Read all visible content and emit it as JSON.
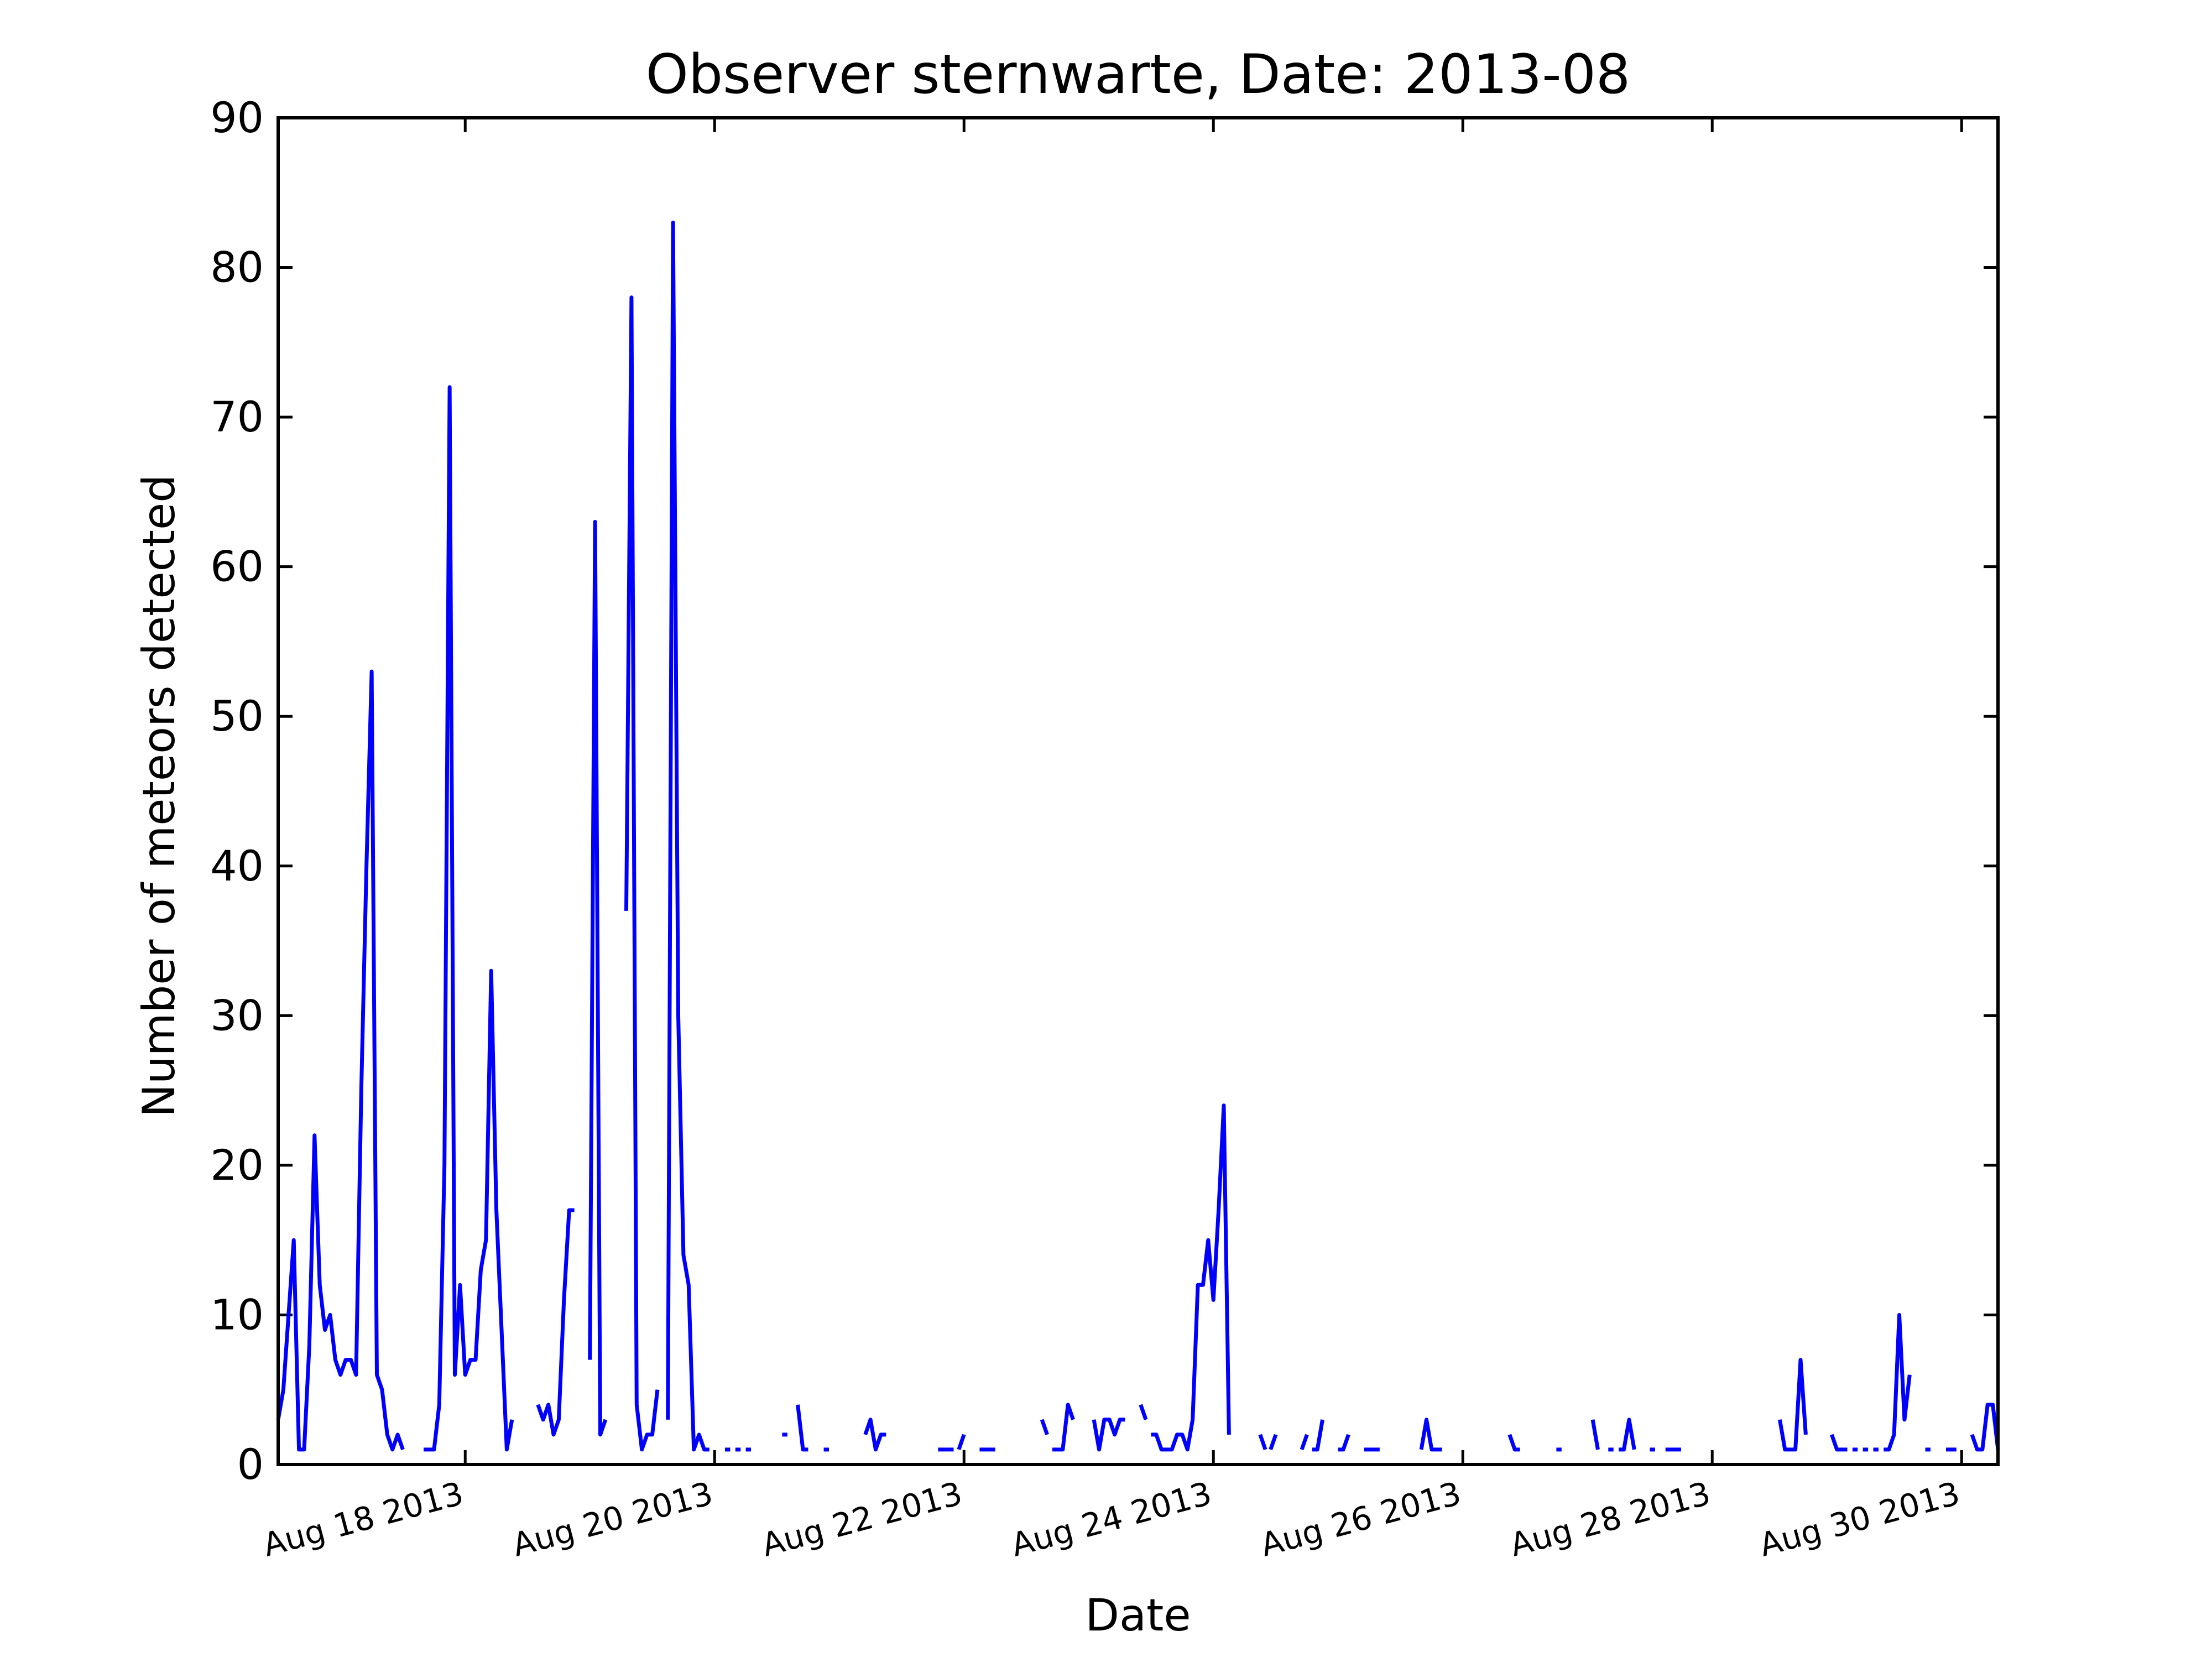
{
  "chart_data": {
    "type": "line",
    "title": "Observer sternwarte, Date: 2013-08",
    "xlabel": "Date",
    "ylabel": "Number of meteors detected",
    "ylim": [
      0,
      90
    ],
    "xlim": [
      "2013-08-17 00:00",
      "2013-08-30 19:00"
    ],
    "y_ticks": [
      0,
      10,
      20,
      30,
      40,
      50,
      60,
      70,
      80,
      90
    ],
    "x_ticks": [
      {
        "date": "2013-08-18 12:00",
        "label": "Aug 18 2013"
      },
      {
        "date": "2013-08-20 12:00",
        "label": "Aug 20 2013"
      },
      {
        "date": "2013-08-22 12:00",
        "label": "Aug 22 2013"
      },
      {
        "date": "2013-08-24 12:00",
        "label": "Aug 24 2013"
      },
      {
        "date": "2013-08-26 12:00",
        "label": "Aug 26 2013"
      },
      {
        "date": "2013-08-28 12:00",
        "label": "Aug 28 2013"
      },
      {
        "date": "2013-08-30 12:00",
        "label": "Aug 30 2013"
      }
    ],
    "grid": false,
    "legend": "none",
    "line_color": "#0000ff",
    "series": [
      {
        "segments": [
          [
            [
              "2013-08-17 00:00",
              3
            ],
            [
              "2013-08-17 01:00",
              5
            ],
            [
              "2013-08-17 02:00",
              10
            ],
            [
              "2013-08-17 03:00",
              15
            ],
            [
              "2013-08-17 04:00",
              1
            ],
            [
              "2013-08-17 05:00",
              1
            ],
            [
              "2013-08-17 06:00",
              8
            ],
            [
              "2013-08-17 07:00",
              22
            ],
            [
              "2013-08-17 08:00",
              12
            ],
            [
              "2013-08-17 09:00",
              9
            ],
            [
              "2013-08-17 10:00",
              10
            ],
            [
              "2013-08-17 11:00",
              7
            ],
            [
              "2013-08-17 12:00",
              6
            ],
            [
              "2013-08-17 13:00",
              7
            ],
            [
              "2013-08-17 14:00",
              7
            ],
            [
              "2013-08-17 15:00",
              6
            ],
            [
              "2013-08-17 16:00",
              25
            ],
            [
              "2013-08-17 17:00",
              40
            ],
            [
              "2013-08-17 18:00",
              53
            ],
            [
              "2013-08-17 19:00",
              6
            ],
            [
              "2013-08-17 20:00",
              5
            ],
            [
              "2013-08-17 21:00",
              2
            ],
            [
              "2013-08-17 22:00",
              1
            ],
            [
              "2013-08-17 23:00",
              2
            ],
            [
              "2013-08-18 00:00",
              1
            ]
          ],
          [
            [
              "2013-08-18 04:00",
              1
            ],
            [
              "2013-08-18 05:00",
              1
            ],
            [
              "2013-08-18 06:00",
              1
            ],
            [
              "2013-08-18 07:00",
              4
            ],
            [
              "2013-08-18 08:00",
              20
            ],
            [
              "2013-08-18 09:00",
              72
            ],
            [
              "2013-08-18 10:00",
              6
            ],
            [
              "2013-08-18 11:00",
              12
            ],
            [
              "2013-08-18 12:00",
              6
            ],
            [
              "2013-08-18 13:00",
              7
            ],
            [
              "2013-08-18 14:00",
              7
            ],
            [
              "2013-08-18 15:00",
              13
            ],
            [
              "2013-08-18 16:00",
              15
            ],
            [
              "2013-08-18 17:00",
              33
            ],
            [
              "2013-08-18 18:00",
              17
            ],
            [
              "2013-08-18 19:00",
              9
            ],
            [
              "2013-08-18 20:00",
              1
            ],
            [
              "2013-08-18 21:00",
              3
            ]
          ],
          [
            [
              "2013-08-19 02:00",
              4
            ],
            [
              "2013-08-19 03:00",
              3
            ],
            [
              "2013-08-19 04:00",
              4
            ],
            [
              "2013-08-19 05:00",
              2
            ],
            [
              "2013-08-19 06:00",
              3
            ],
            [
              "2013-08-19 07:00",
              11
            ],
            [
              "2013-08-19 08:00",
              17
            ],
            [
              "2013-08-19 09:00",
              17
            ]
          ],
          [
            [
              "2013-08-19 12:00",
              7
            ],
            [
              "2013-08-19 13:00",
              63
            ],
            [
              "2013-08-19 14:00",
              2
            ],
            [
              "2013-08-19 15:00",
              3
            ]
          ],
          [
            [
              "2013-08-19 19:00",
              37
            ],
            [
              "2013-08-19 20:00",
              78
            ],
            [
              "2013-08-19 21:00",
              4
            ],
            [
              "2013-08-19 22:00",
              1
            ],
            [
              "2013-08-19 23:00",
              2
            ],
            [
              "2013-08-20 00:00",
              2
            ],
            [
              "2013-08-20 01:00",
              5
            ]
          ],
          [
            [
              "2013-08-20 03:00",
              3
            ],
            [
              "2013-08-20 04:00",
              83
            ],
            [
              "2013-08-20 05:00",
              30
            ],
            [
              "2013-08-20 06:00",
              14
            ],
            [
              "2013-08-20 07:00",
              12
            ],
            [
              "2013-08-20 08:00",
              1
            ],
            [
              "2013-08-20 09:00",
              2
            ],
            [
              "2013-08-20 10:00",
              1
            ],
            [
              "2013-08-20 11:00",
              1
            ]
          ],
          [
            [
              "2013-08-20 14:00",
              1
            ],
            [
              "2013-08-20 15:00",
              1
            ]
          ],
          [
            [
              "2013-08-20 16:00",
              1
            ],
            [
              "2013-08-20 17:00",
              1
            ]
          ],
          [
            [
              "2013-08-20 18:00",
              1
            ],
            [
              "2013-08-20 19:00",
              1
            ]
          ],
          [
            [
              "2013-08-21 01:00",
              2
            ],
            [
              "2013-08-21 02:00",
              2
            ]
          ],
          [
            [
              "2013-08-21 04:00",
              4
            ],
            [
              "2013-08-21 05:00",
              1
            ],
            [
              "2013-08-21 06:00",
              1
            ]
          ],
          [
            [
              "2013-08-21 09:00",
              1
            ],
            [
              "2013-08-21 10:00",
              1
            ]
          ],
          [
            [
              "2013-08-21 17:00",
              2
            ],
            [
              "2013-08-21 18:00",
              3
            ],
            [
              "2013-08-21 19:00",
              1
            ],
            [
              "2013-08-21 20:00",
              2
            ],
            [
              "2013-08-21 21:00",
              2
            ]
          ],
          [
            [
              "2013-08-22 07:00",
              1
            ],
            [
              "2013-08-22 08:00",
              1
            ],
            [
              "2013-08-22 09:00",
              1
            ],
            [
              "2013-08-22 10:00",
              1
            ]
          ],
          [
            [
              "2013-08-22 11:00",
              1
            ],
            [
              "2013-08-22 12:00",
              2
            ]
          ],
          [
            [
              "2013-08-22 15:00",
              1
            ],
            [
              "2013-08-22 16:00",
              1
            ],
            [
              "2013-08-22 17:00",
              1
            ],
            [
              "2013-08-22 18:00",
              1
            ]
          ],
          [
            [
              "2013-08-23 03:00",
              3
            ],
            [
              "2013-08-23 04:00",
              2
            ]
          ],
          [
            [
              "2013-08-23 05:00",
              1
            ],
            [
              "2013-08-23 06:00",
              1
            ],
            [
              "2013-08-23 07:00",
              1
            ],
            [
              "2013-08-23 08:00",
              4
            ],
            [
              "2013-08-23 09:00",
              3
            ]
          ],
          [
            [
              "2013-08-23 13:00",
              3
            ],
            [
              "2013-08-23 14:00",
              1
            ],
            [
              "2013-08-23 15:00",
              3
            ],
            [
              "2013-08-23 16:00",
              3
            ],
            [
              "2013-08-23 17:00",
              2
            ],
            [
              "2013-08-23 18:00",
              3
            ],
            [
              "2013-08-23 19:00",
              3
            ]
          ],
          [
            [
              "2013-08-23 22:00",
              4
            ],
            [
              "2013-08-23 23:00",
              3
            ]
          ],
          [
            [
              "2013-08-24 00:00",
              2
            ],
            [
              "2013-08-24 01:00",
              2
            ],
            [
              "2013-08-24 02:00",
              1
            ],
            [
              "2013-08-24 03:00",
              1
            ],
            [
              "2013-08-24 04:00",
              1
            ],
            [
              "2013-08-24 05:00",
              2
            ],
            [
              "2013-08-24 06:00",
              2
            ],
            [
              "2013-08-24 07:00",
              1
            ],
            [
              "2013-08-24 08:00",
              3
            ],
            [
              "2013-08-24 09:00",
              12
            ],
            [
              "2013-08-24 10:00",
              12
            ],
            [
              "2013-08-24 11:00",
              15
            ],
            [
              "2013-08-24 12:00",
              11
            ],
            [
              "2013-08-24 13:00",
              17
            ],
            [
              "2013-08-24 14:00",
              24
            ],
            [
              "2013-08-24 15:00",
              2
            ]
          ],
          [
            [
              "2013-08-24 21:00",
              2
            ],
            [
              "2013-08-24 22:00",
              1
            ]
          ],
          [
            [
              "2013-08-24 23:00",
              1
            ],
            [
              "2013-08-25 00:00",
              2
            ]
          ],
          [
            [
              "2013-08-25 05:00",
              1
            ],
            [
              "2013-08-25 06:00",
              2
            ]
          ],
          [
            [
              "2013-08-25 07:00",
              1
            ],
            [
              "2013-08-25 08:00",
              1
            ],
            [
              "2013-08-25 09:00",
              3
            ]
          ],
          [
            [
              "2013-08-25 12:00",
              1
            ],
            [
              "2013-08-25 13:00",
              1
            ],
            [
              "2013-08-25 14:00",
              2
            ]
          ],
          [
            [
              "2013-08-25 17:00",
              1
            ],
            [
              "2013-08-25 18:00",
              1
            ],
            [
              "2013-08-25 19:00",
              1
            ],
            [
              "2013-08-25 20:00",
              1
            ]
          ],
          [
            [
              "2013-08-26 04:00",
              1
            ],
            [
              "2013-08-26 05:00",
              3
            ],
            [
              "2013-08-26 06:00",
              1
            ],
            [
              "2013-08-26 07:00",
              1
            ],
            [
              "2013-08-26 08:00",
              1
            ]
          ],
          [
            [
              "2013-08-26 21:00",
              2
            ],
            [
              "2013-08-26 22:00",
              1
            ],
            [
              "2013-08-26 23:00",
              1
            ]
          ],
          [
            [
              "2013-08-27 06:00",
              1
            ],
            [
              "2013-08-27 07:00",
              1
            ]
          ],
          [
            [
              "2013-08-27 13:00",
              3
            ],
            [
              "2013-08-27 14:00",
              1
            ]
          ],
          [
            [
              "2013-08-27 16:00",
              1
            ],
            [
              "2013-08-27 17:00",
              1
            ]
          ],
          [
            [
              "2013-08-27 18:00",
              1
            ],
            [
              "2013-08-27 19:00",
              1
            ],
            [
              "2013-08-27 20:00",
              3
            ],
            [
              "2013-08-27 21:00",
              1
            ]
          ],
          [
            [
              "2013-08-28 00:00",
              1
            ],
            [
              "2013-08-28 01:00",
              1
            ]
          ],
          [
            [
              "2013-08-28 03:00",
              1
            ],
            [
              "2013-08-28 04:00",
              1
            ],
            [
              "2013-08-28 05:00",
              1
            ],
            [
              "2013-08-28 06:00",
              1
            ]
          ],
          [
            [
              "2013-08-29 01:00",
              3
            ],
            [
              "2013-08-29 02:00",
              1
            ],
            [
              "2013-08-29 03:00",
              1
            ],
            [
              "2013-08-29 04:00",
              1
            ],
            [
              "2013-08-29 05:00",
              7
            ],
            [
              "2013-08-29 06:00",
              2
            ]
          ],
          [
            [
              "2013-08-29 11:00",
              2
            ],
            [
              "2013-08-29 12:00",
              1
            ],
            [
              "2013-08-29 13:00",
              1
            ],
            [
              "2013-08-29 14:00",
              1
            ]
          ],
          [
            [
              "2013-08-29 15:00",
              1
            ],
            [
              "2013-08-29 16:00",
              1
            ]
          ],
          [
            [
              "2013-08-29 17:00",
              1
            ],
            [
              "2013-08-29 18:00",
              1
            ]
          ],
          [
            [
              "2013-08-29 19:00",
              1
            ],
            [
              "2013-08-29 20:00",
              1
            ]
          ],
          [
            [
              "2013-08-29 21:00",
              1
            ],
            [
              "2013-08-29 22:00",
              1
            ],
            [
              "2013-08-29 23:00",
              2
            ],
            [
              "2013-08-30 00:00",
              10
            ],
            [
              "2013-08-30 01:00",
              3
            ],
            [
              "2013-08-30 02:00",
              6
            ]
          ],
          [
            [
              "2013-08-30 05:00",
              1
            ],
            [
              "2013-08-30 06:00",
              1
            ]
          ],
          [
            [
              "2013-08-30 09:00",
              1
            ],
            [
              "2013-08-30 10:00",
              1
            ],
            [
              "2013-08-30 11:00",
              1
            ]
          ],
          [
            [
              "2013-08-30 14:00",
              2
            ],
            [
              "2013-08-30 15:00",
              1
            ],
            [
              "2013-08-30 16:00",
              1
            ],
            [
              "2013-08-30 17:00",
              4
            ],
            [
              "2013-08-30 18:00",
              4
            ],
            [
              "2013-08-30 19:00",
              1
            ]
          ]
        ]
      }
    ]
  }
}
